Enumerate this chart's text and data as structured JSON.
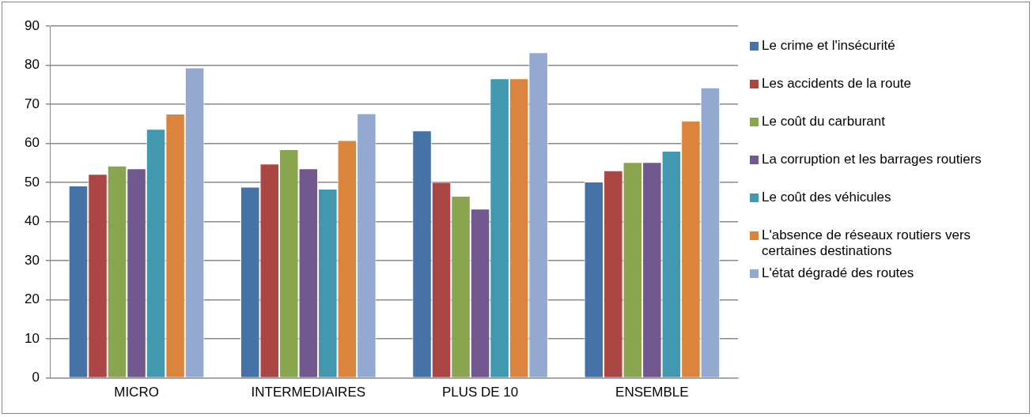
{
  "chart_data": {
    "type": "bar",
    "categories": [
      "MICRO",
      "INTERMEDIAIRES",
      "PLUS DE 10",
      "ENSEMBLE"
    ],
    "series": [
      {
        "name": "Le crime et l'insécurité",
        "color": "#4572a7",
        "values": [
          49.2,
          48.9,
          63.3,
          50.2
        ]
      },
      {
        "name": "Les accidents de la route",
        "color": "#aa4643",
        "values": [
          52.2,
          54.8,
          50.1,
          53.1
        ]
      },
      {
        "name": "Le coût du carburant",
        "color": "#89a54e",
        "values": [
          54.3,
          58.5,
          46.6,
          55.2
        ]
      },
      {
        "name": "La corruption et les barrages routiers",
        "color": "#71588f",
        "values": [
          53.6,
          53.6,
          43.3,
          55.2
        ]
      },
      {
        "name": "Le coût des véhicules",
        "color": "#4198af",
        "values": [
          63.7,
          48.4,
          76.6,
          58.1
        ]
      },
      {
        "name": "L'absence de réseaux routiers vers certaines destinations",
        "color": "#db843d",
        "values": [
          67.6,
          60.8,
          76.6,
          65.8
        ]
      },
      {
        "name": "L'état dégradé des routes",
        "color": "#93a9cf",
        "values": [
          79.4,
          67.7,
          83.3,
          74.3
        ]
      }
    ],
    "ylim": [
      0,
      90
    ],
    "yticks": [
      0,
      10,
      20,
      30,
      40,
      50,
      60,
      70,
      80,
      90
    ],
    "grid": "y",
    "legend": "right"
  }
}
